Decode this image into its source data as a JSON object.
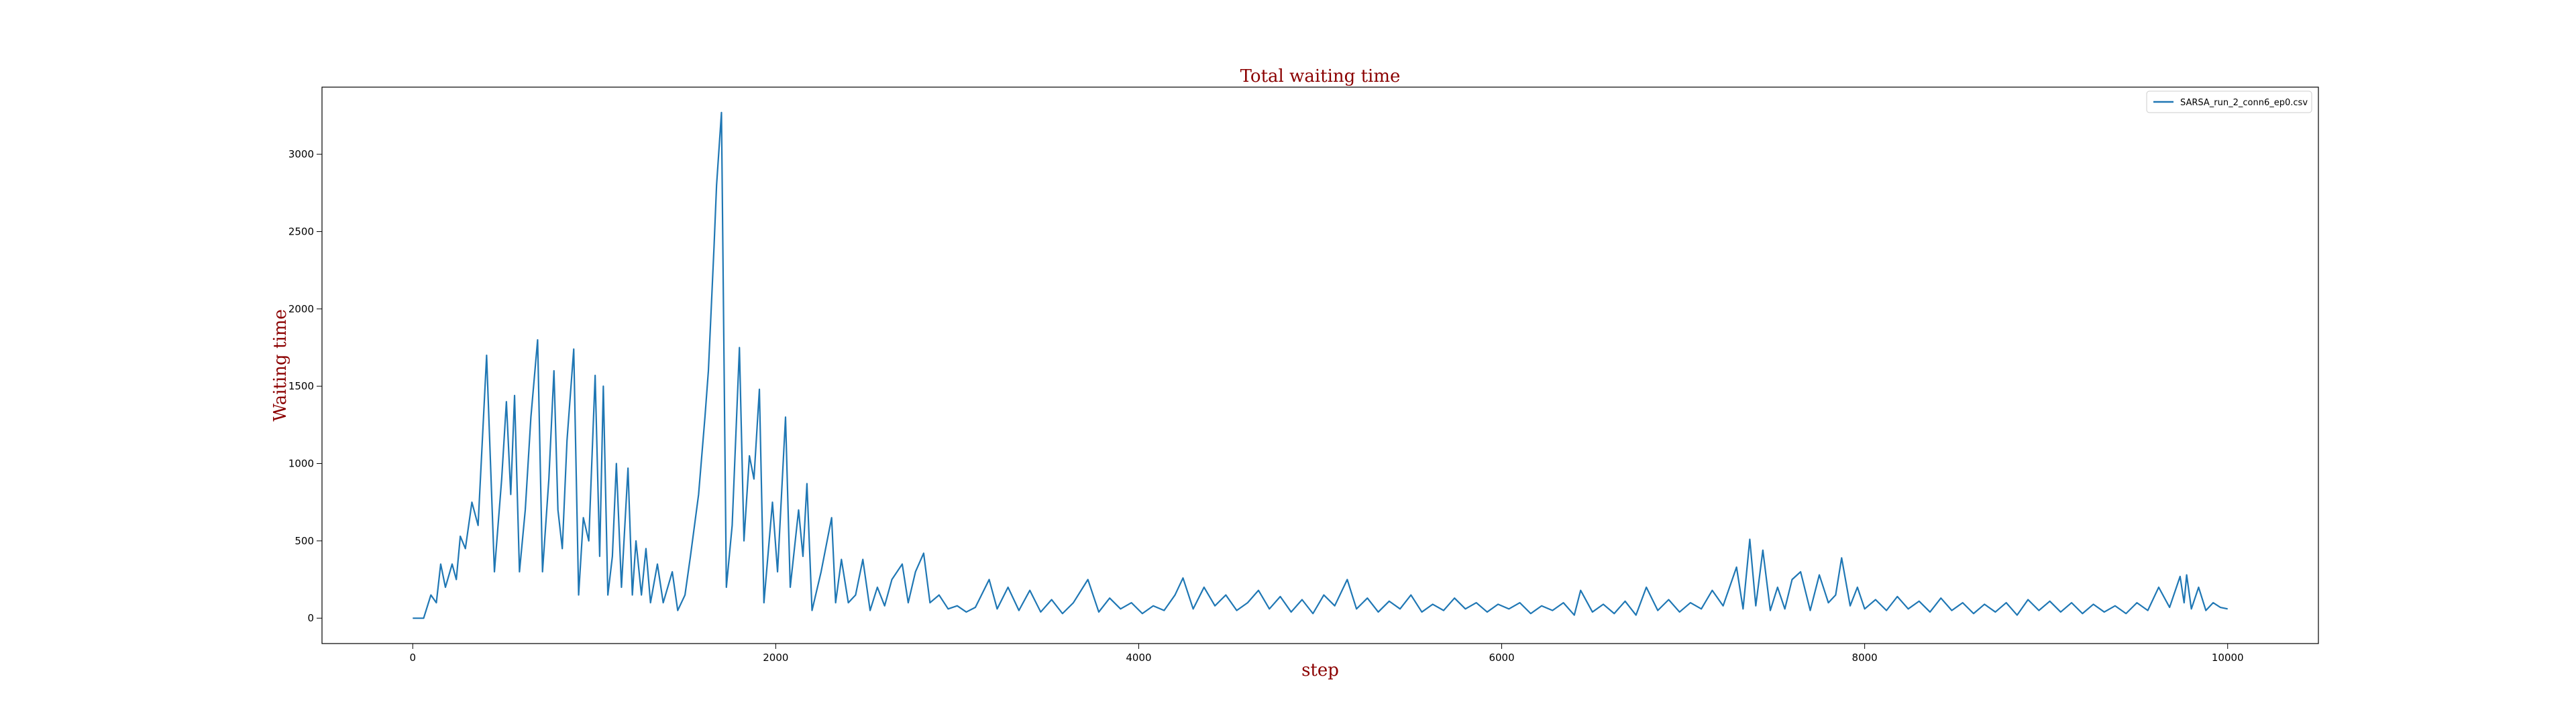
{
  "chart_data": {
    "type": "line",
    "title": "Total waiting time",
    "x_label": "step",
    "y_label": "Waiting time",
    "x": [
      0,
      60,
      100,
      130,
      154,
      180,
      217,
      240,
      262,
      290,
      326,
      360,
      407,
      450,
      490,
      516,
      540,
      561,
      588,
      620,
      651,
      688,
      715,
      750,
      778,
      800,
      824,
      850,
      887,
      914,
      940,
      970,
      1005,
      1030,
      1050,
      1075,
      1100,
      1122,
      1150,
      1186,
      1210,
      1230,
      1260,
      1285,
      1310,
      1348,
      1380,
      1430,
      1460,
      1500,
      1530,
      1575,
      1610,
      1629,
      1660,
      1674,
      1701,
      1728,
      1760,
      1800,
      1825,
      1855,
      1880,
      1910,
      1935,
      1982,
      2010,
      2054,
      2080,
      2126,
      2150,
      2172,
      2200,
      2250,
      2308,
      2330,
      2362,
      2400,
      2440,
      2480,
      2520,
      2560,
      2600,
      2640,
      2697,
      2730,
      2770,
      2815,
      2850,
      2900,
      2950,
      3000,
      3050,
      3100,
      3176,
      3220,
      3280,
      3340,
      3400,
      3460,
      3520,
      3580,
      3640,
      3720,
      3780,
      3840,
      3900,
      3960,
      4020,
      4080,
      4140,
      4200,
      4244,
      4300,
      4360,
      4420,
      4480,
      4540,
      4600,
      4660,
      4720,
      4780,
      4840,
      4900,
      4960,
      5020,
      5080,
      5149,
      5200,
      5260,
      5320,
      5380,
      5440,
      5500,
      5560,
      5620,
      5680,
      5740,
      5800,
      5860,
      5920,
      5980,
      6040,
      6100,
      6160,
      6220,
      6280,
      6340,
      6400,
      6435,
      6500,
      6560,
      6620,
      6680,
      6740,
      6797,
      6860,
      6920,
      6980,
      7040,
      7100,
      7160,
      7220,
      7294,
      7330,
      7367,
      7400,
      7439,
      7480,
      7520,
      7560,
      7600,
      7647,
      7700,
      7750,
      7800,
      7840,
      7873,
      7920,
      7960,
      8000,
      8060,
      8120,
      8180,
      8240,
      8300,
      8360,
      8420,
      8480,
      8540,
      8600,
      8660,
      8720,
      8780,
      8840,
      8900,
      8960,
      9020,
      9080,
      9140,
      9200,
      9260,
      9320,
      9380,
      9440,
      9500,
      9560,
      9620,
      9680,
      9738,
      9760,
      9774,
      9800,
      9840,
      9880,
      9920,
      9960,
      10000
    ],
    "series": [
      {
        "name": "SARSA_run_2_conn6_ep0.csv",
        "color": "#1f77b4",
        "values": [
          0,
          0,
          150,
          100,
          350,
          200,
          350,
          250,
          530,
          450,
          750,
          600,
          1700,
          300,
          900,
          1400,
          800,
          1440,
          300,
          700,
          1300,
          1800,
          300,
          900,
          1600,
          700,
          450,
          1150,
          1740,
          150,
          650,
          500,
          1570,
          400,
          1500,
          150,
          400,
          1000,
          200,
          970,
          150,
          500,
          150,
          450,
          100,
          350,
          100,
          300,
          50,
          150,
          400,
          800,
          1300,
          1600,
          2400,
          2800,
          3270,
          200,
          600,
          1750,
          500,
          1050,
          900,
          1480,
          100,
          750,
          300,
          1300,
          200,
          700,
          400,
          870,
          50,
          300,
          650,
          100,
          380,
          100,
          150,
          380,
          50,
          200,
          80,
          250,
          350,
          100,
          300,
          420,
          100,
          150,
          60,
          80,
          40,
          70,
          250,
          60,
          200,
          50,
          180,
          40,
          120,
          30,
          100,
          250,
          40,
          130,
          60,
          100,
          30,
          80,
          50,
          150,
          260,
          60,
          200,
          80,
          150,
          50,
          100,
          180,
          60,
          140,
          40,
          120,
          30,
          150,
          80,
          250,
          60,
          130,
          40,
          110,
          60,
          150,
          40,
          90,
          50,
          130,
          60,
          100,
          40,
          90,
          60,
          100,
          30,
          80,
          50,
          100,
          20,
          180,
          40,
          90,
          30,
          110,
          20,
          200,
          50,
          120,
          40,
          100,
          60,
          180,
          80,
          330,
          60,
          510,
          80,
          440,
          50,
          200,
          60,
          250,
          300,
          50,
          280,
          100,
          150,
          390,
          80,
          200,
          60,
          120,
          50,
          140,
          60,
          110,
          40,
          130,
          50,
          100,
          30,
          90,
          40,
          100,
          20,
          120,
          50,
          110,
          40,
          100,
          30,
          90,
          40,
          80,
          30,
          100,
          50,
          200,
          70,
          270,
          100,
          280,
          60,
          200,
          50,
          100,
          70,
          60
        ]
      }
    ],
    "xlim": [
      -500,
      10500
    ],
    "xticks": [
      0,
      2000,
      4000,
      6000,
      8000,
      10000
    ],
    "ylim": [
      -164,
      3434
    ],
    "yticks": [
      0,
      500,
      1000,
      1500,
      2000,
      2500,
      3000
    ],
    "grid": false,
    "legend": "upper right"
  }
}
